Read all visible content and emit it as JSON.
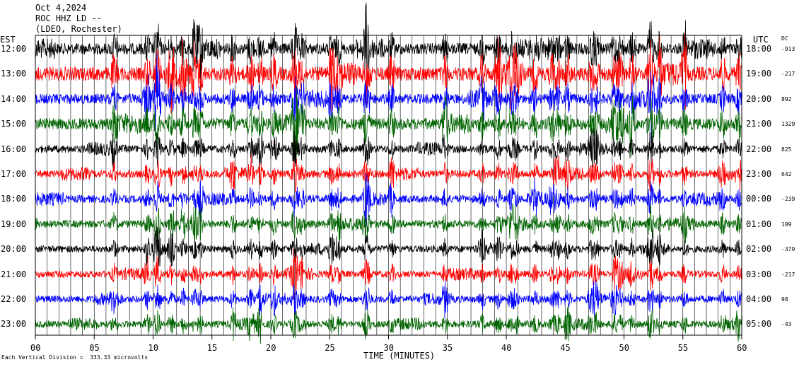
{
  "header": {
    "date": "Oct 4,2024",
    "station": "ROC HHZ LD --",
    "location": "(LDEO, Rochester)"
  },
  "left_zone_label": "EST",
  "right_zone_label": "UTC",
  "dc_label": "DC",
  "footer_note": "Each Vertical Division =  333.33 microvolts",
  "xaxis_title": "TIME (MINUTES)",
  "chart_data": {
    "type": "line",
    "title": "",
    "xlabel": "TIME (MINUTES)",
    "xlim": [
      0,
      60
    ],
    "x_ticks": [
      "00",
      "05",
      "10",
      "15",
      "20",
      "25",
      "30",
      "35",
      "40",
      "45",
      "50",
      "55",
      "60"
    ],
    "trace_colors": [
      "#000000",
      "#ff0000",
      "#0000ff",
      "#006400"
    ],
    "rows": [
      {
        "est": "12:00",
        "utc": "18:00",
        "dc": "-913",
        "color": "#000000",
        "amp": 0.9
      },
      {
        "est": "13:00",
        "utc": "19:00",
        "dc": "-217",
        "color": "#ff0000",
        "amp": 1.1
      },
      {
        "est": "14:00",
        "utc": "20:00",
        "dc": "892",
        "color": "#0000ff",
        "amp": 0.8
      },
      {
        "est": "15:00",
        "utc": "21:00",
        "dc": "1329",
        "color": "#006400",
        "amp": 0.9
      },
      {
        "est": "16:00",
        "utc": "22:00",
        "dc": "825",
        "color": "#000000",
        "amp": 0.6
      },
      {
        "est": "17:00",
        "utc": "23:00",
        "dc": "642",
        "color": "#ff0000",
        "amp": 0.6
      },
      {
        "est": "18:00",
        "utc": "00:00",
        "dc": "-239",
        "color": "#0000ff",
        "amp": 0.6
      },
      {
        "est": "19:00",
        "utc": "01:00",
        "dc": "109",
        "color": "#006400",
        "amp": 0.6
      },
      {
        "est": "20:00",
        "utc": "02:00",
        "dc": "-379",
        "color": "#000000",
        "amp": 0.55
      },
      {
        "est": "21:00",
        "utc": "03:00",
        "dc": "-217",
        "color": "#ff0000",
        "amp": 0.55
      },
      {
        "est": "22:00",
        "utc": "04:00",
        "dc": "98",
        "color": "#0000ff",
        "amp": 0.55
      },
      {
        "est": "23:00",
        "utc": "05:00",
        "dc": "-43",
        "color": "#006400",
        "amp": 0.55
      }
    ]
  }
}
